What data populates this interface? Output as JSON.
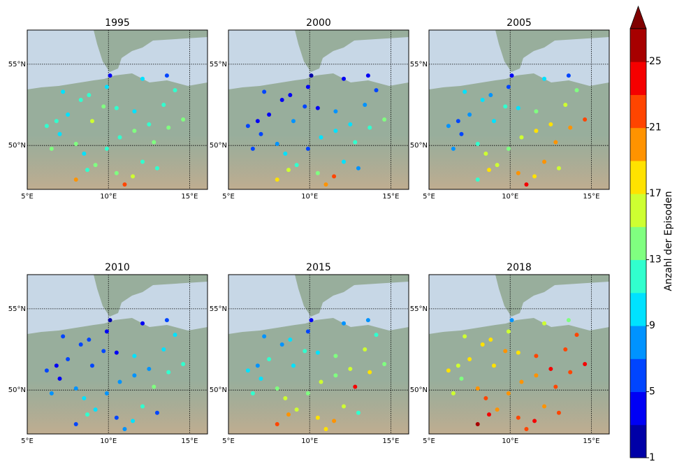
{
  "chart_data": {
    "type": "scatter",
    "lon": [
      6.2,
      6.8,
      7.0,
      7.5,
      8.0,
      8.5,
      8.7,
      8.0,
      9.2,
      9.9,
      10.5,
      11.5,
      12.1,
      11.0,
      13.0,
      9.7,
      10.5,
      11.6,
      12.5,
      13.7,
      14.6,
      13.4,
      12.1,
      10.1,
      9.9,
      8.8,
      7.2,
      14.1,
      11.6,
      9.0,
      6.5,
      8.3,
      13.6,
      12.8,
      10.7
    ],
    "lat": [
      51.2,
      51.5,
      50.7,
      51.9,
      50.1,
      49.5,
      48.5,
      47.9,
      48.8,
      49.8,
      48.3,
      48.1,
      49.0,
      47.6,
      48.6,
      52.4,
      52.3,
      52.1,
      51.3,
      51.1,
      51.6,
      52.5,
      54.1,
      54.3,
      53.6,
      53.1,
      53.3,
      53.4,
      50.9,
      51.5,
      49.8,
      52.8,
      54.3,
      50.2,
      50.5
    ],
    "xlim": [
      5,
      16.1
    ],
    "ylim": [
      47.3,
      57.1
    ],
    "xticks": [
      {
        "value": 5,
        "label": "5°E"
      },
      {
        "value": 10,
        "label": "10°E"
      },
      {
        "value": 15,
        "label": "15°E"
      }
    ],
    "yticks": [
      {
        "value": 50,
        "label": "50°N"
      },
      {
        "value": 55,
        "label": "55°N"
      }
    ],
    "grid": true,
    "panels": [
      {
        "title": "1995",
        "values": [
          12,
          11,
          10,
          9,
          13,
          10,
          11,
          19,
          14,
          12,
          13,
          15,
          12,
          21,
          11,
          13,
          11,
          10,
          12,
          14,
          13,
          11,
          10,
          3,
          9,
          11,
          10,
          12,
          14,
          15,
          13,
          12,
          5,
          13,
          12
        ]
      },
      {
        "title": "2000",
        "values": [
          5,
          4,
          6,
          4,
          7,
          9,
          15,
          17,
          11,
          6,
          13,
          21,
          9,
          19,
          7,
          5,
          3,
          7,
          9,
          11,
          13,
          7,
          3,
          1,
          3,
          4,
          5,
          5,
          9,
          7,
          6,
          3,
          3,
          11,
          9
        ]
      },
      {
        "title": "2005",
        "values": [
          7,
          5,
          6,
          8,
          11,
          15,
          17,
          11,
          15,
          13,
          19,
          17,
          19,
          23,
          15,
          11,
          9,
          13,
          17,
          19,
          21,
          15,
          9,
          3,
          5,
          7,
          9,
          13,
          17,
          9,
          7,
          9,
          5,
          19,
          15
        ]
      },
      {
        "title": "2010",
        "values": [
          5,
          3,
          4,
          5,
          7,
          9,
          11,
          5,
          9,
          7,
          5,
          9,
          11,
          7,
          5,
          5,
          3,
          9,
          7,
          11,
          11,
          9,
          3,
          1,
          3,
          5,
          5,
          9,
          7,
          5,
          7,
          5,
          5,
          13,
          7
        ]
      },
      {
        "title": "2015",
        "values": [
          9,
          7,
          9,
          11,
          13,
          15,
          19,
          21,
          15,
          13,
          17,
          19,
          15,
          17,
          11,
          11,
          9,
          13,
          15,
          17,
          13,
          15,
          7,
          3,
          5,
          9,
          7,
          11,
          13,
          9,
          11,
          7,
          7,
          23,
          15
        ]
      },
      {
        "title": "2018",
        "values": [
          17,
          15,
          13,
          17,
          19,
          21,
          23,
          25,
          19,
          19,
          21,
          23,
          19,
          21,
          21,
          19,
          17,
          21,
          23,
          21,
          23,
          21,
          15,
          7,
          15,
          17,
          15,
          21,
          19,
          17,
          15,
          17,
          13,
          21,
          19
        ]
      }
    ],
    "colorbar": {
      "label": "Anzahl der Episoden",
      "lim": [
        1,
        27
      ],
      "step": 2,
      "ticks": [
        1,
        5,
        9,
        13,
        17,
        21,
        25
      ],
      "colormap": "jet",
      "extend": "max"
    }
  }
}
